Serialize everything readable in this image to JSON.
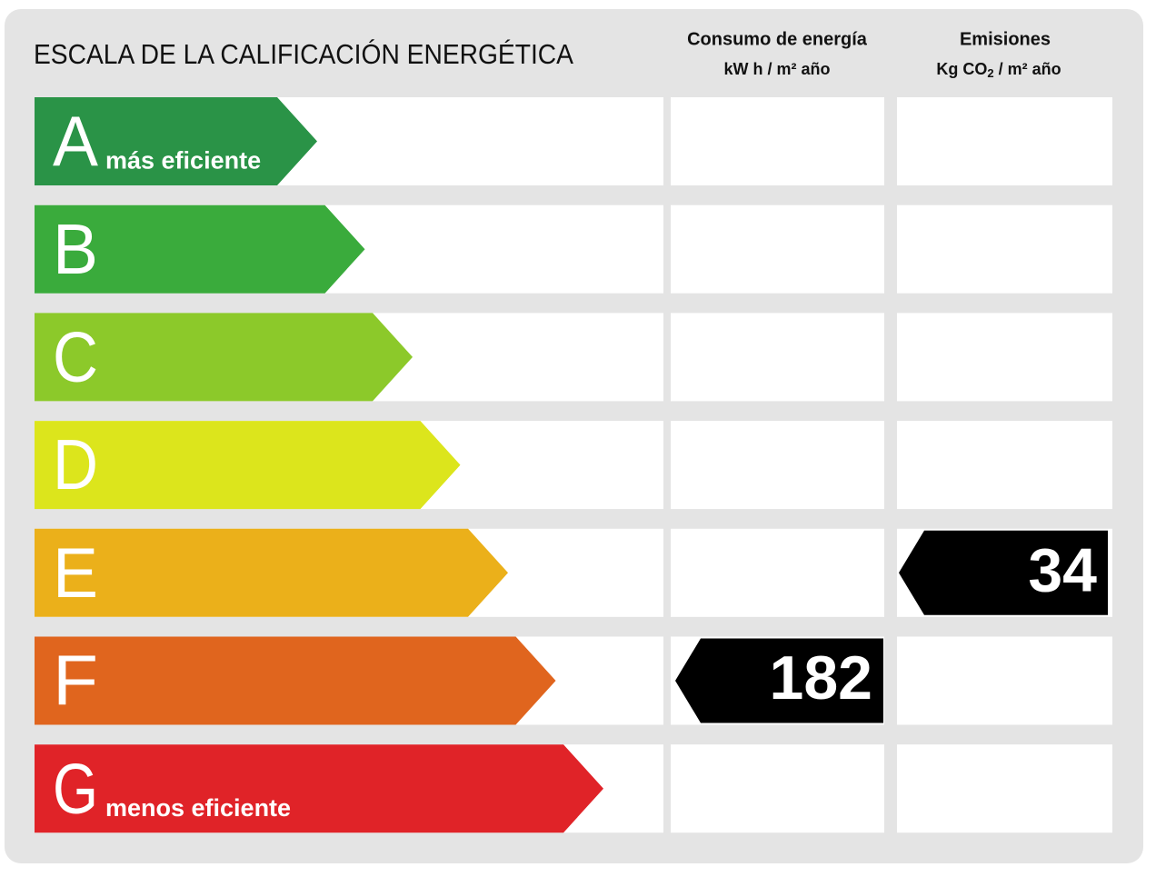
{
  "header": {
    "title": "ESCALA DE LA CALIFICACIÓN ENERGÉTICA",
    "consumption": {
      "title": "Consumo de energía",
      "unit": "kW h / m² año"
    },
    "emissions": {
      "title": "Emisiones",
      "unit_prefix": "Kg CO",
      "unit_sub": "2",
      "unit_suffix": " / m² año"
    }
  },
  "rows": [
    {
      "letter": "A",
      "label": "más eficiente",
      "color": "#2a9347"
    },
    {
      "letter": "B",
      "label": null,
      "color": "#3aab3c"
    },
    {
      "letter": "C",
      "label": null,
      "color": "#8cc92a"
    },
    {
      "letter": "D",
      "label": null,
      "color": "#dce51c"
    },
    {
      "letter": "E",
      "label": null,
      "color": "#ebb01a"
    },
    {
      "letter": "F",
      "label": null,
      "color": "#e0651e"
    },
    {
      "letter": "G",
      "label": "menos eficiente",
      "color": "#e02328"
    }
  ],
  "ratings": {
    "consumption": {
      "letter": "F",
      "value": 182
    },
    "emissions": {
      "letter": "E",
      "value": 34
    }
  }
}
